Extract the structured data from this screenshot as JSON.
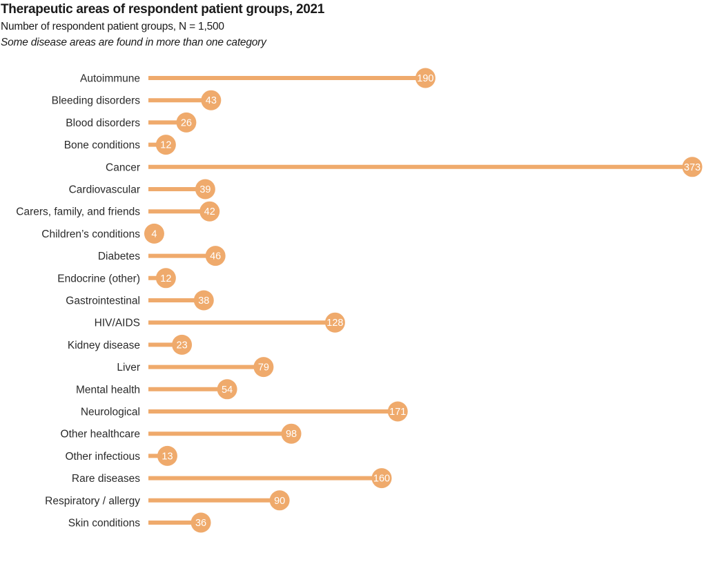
{
  "chart_data": {
    "type": "bar",
    "title": "Therapeutic areas of respondent patient groups, 2021",
    "subtitle": "Number of respondent patient groups, N = 1,500",
    "note": "Some disease areas are found in more than one category",
    "categories": [
      "Autoimmune",
      "Bleeding disorders",
      "Blood disorders",
      "Bone conditions",
      "Cancer",
      "Cardiovascular",
      "Carers, family, and friends",
      "Children’s conditions",
      "Diabetes",
      "Endocrine (other)",
      "Gastrointestinal",
      "HIV/AIDS",
      "Kidney disease",
      "Liver",
      "Mental health",
      "Neurological",
      "Other healthcare",
      "Other infectious",
      "Rare diseases",
      "Respiratory / allergy",
      "Skin conditions"
    ],
    "values": [
      190,
      43,
      26,
      12,
      373,
      39,
      42,
      4,
      46,
      12,
      38,
      128,
      23,
      79,
      54,
      171,
      98,
      13,
      160,
      90,
      36
    ],
    "xlim": [
      0,
      373
    ],
    "orientation": "horizontal",
    "grid": false,
    "legend": "none",
    "colors": {
      "bar": "#EFAA6C",
      "label_text": "#ffffff"
    }
  }
}
